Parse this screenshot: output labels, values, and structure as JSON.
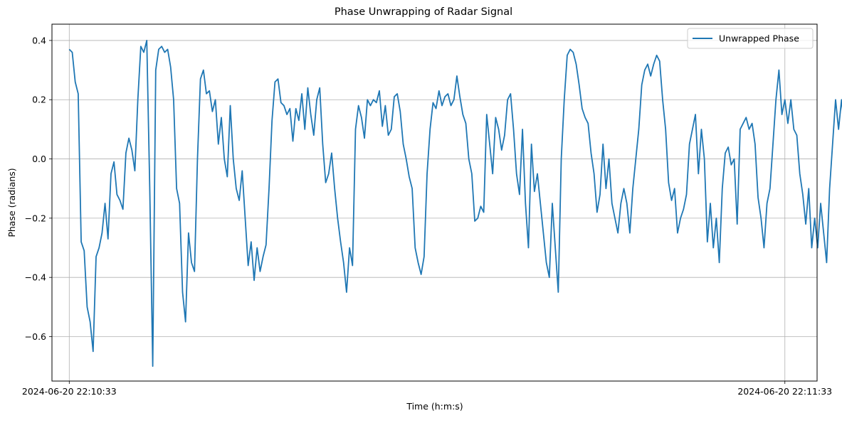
{
  "chart_data": {
    "type": "line",
    "title": "Phase Unwrapping of Radar Signal",
    "xlabel": "Time (h:m:s)",
    "ylabel": "Phase (radians)",
    "x_ticks": [
      "2024-06-20 22:10:33",
      "2024-06-20 22:11:33"
    ],
    "xlim_seconds": [
      -1.45,
      62.7
    ],
    "ylim": [
      -0.75,
      0.455
    ],
    "y_ticks": [
      -0.6,
      -0.4,
      -0.2,
      0.0,
      0.2,
      0.4
    ],
    "y_tick_labels": [
      "−0.6",
      "−0.4",
      "−0.2",
      "0.0",
      "0.2",
      "0.4"
    ],
    "grid": true,
    "legend_position": "upper-right",
    "colors": {
      "series": "#1f77b4",
      "grid": "#b0b0b0",
      "axes": "#000000"
    },
    "series": [
      {
        "name": "Unwrapped Phase",
        "t_start": "2024-06-20 22:10:33",
        "dt_seconds": 0.25,
        "values": [
          0.37,
          0.36,
          0.26,
          0.22,
          -0.28,
          -0.31,
          -0.5,
          -0.55,
          -0.65,
          -0.33,
          -0.3,
          -0.25,
          -0.15,
          -0.27,
          -0.05,
          -0.01,
          -0.12,
          -0.14,
          -0.17,
          0.02,
          0.07,
          0.03,
          -0.04,
          0.2,
          0.38,
          0.36,
          0.4,
          -0.1,
          -0.7,
          0.3,
          0.37,
          0.38,
          0.36,
          0.37,
          0.31,
          0.2,
          -0.1,
          -0.15,
          -0.45,
          -0.55,
          -0.25,
          -0.35,
          -0.38,
          0.0,
          0.27,
          0.3,
          0.22,
          0.23,
          0.16,
          0.2,
          0.05,
          0.14,
          0.0,
          -0.06,
          0.18,
          0.0,
          -0.1,
          -0.14,
          -0.04,
          -0.2,
          -0.36,
          -0.28,
          -0.41,
          -0.3,
          -0.38,
          -0.33,
          -0.29,
          -0.1,
          0.13,
          0.26,
          0.27,
          0.19,
          0.18,
          0.15,
          0.17,
          0.06,
          0.17,
          0.13,
          0.22,
          0.1,
          0.24,
          0.15,
          0.08,
          0.2,
          0.24,
          0.05,
          -0.08,
          -0.05,
          0.02,
          -0.1,
          -0.2,
          -0.28,
          -0.35,
          -0.45,
          -0.3,
          -0.36,
          0.1,
          0.18,
          0.14,
          0.07,
          0.2,
          0.18,
          0.2,
          0.19,
          0.23,
          0.11,
          0.18,
          0.08,
          0.1,
          0.21,
          0.22,
          0.16,
          0.05,
          0.0,
          -0.06,
          -0.1,
          -0.3,
          -0.35,
          -0.39,
          -0.33,
          -0.05,
          0.1,
          0.19,
          0.17,
          0.23,
          0.18,
          0.21,
          0.22,
          0.18,
          0.2,
          0.28,
          0.21,
          0.15,
          0.12,
          0.0,
          -0.05,
          -0.21,
          -0.2,
          -0.16,
          -0.18,
          0.15,
          0.05,
          -0.05,
          0.14,
          0.1,
          0.03,
          0.08,
          0.2,
          0.22,
          0.1,
          -0.05,
          -0.12,
          0.1,
          -0.15,
          -0.3,
          0.05,
          -0.11,
          -0.05,
          -0.15,
          -0.25,
          -0.35,
          -0.4,
          -0.15,
          -0.3,
          -0.45,
          0.0,
          0.2,
          0.35,
          0.37,
          0.36,
          0.32,
          0.25,
          0.17,
          0.14,
          0.12,
          0.02,
          -0.05,
          -0.18,
          -0.12,
          0.05,
          -0.1,
          0.0,
          -0.15,
          -0.2,
          -0.25,
          -0.15,
          -0.1,
          -0.15,
          -0.25,
          -0.1,
          0.0,
          0.1,
          0.25,
          0.3,
          0.32,
          0.28,
          0.32,
          0.35,
          0.33,
          0.2,
          0.1,
          -0.08,
          -0.14,
          -0.1,
          -0.25,
          -0.2,
          -0.17,
          -0.12,
          0.05,
          0.1,
          0.15,
          -0.05,
          0.1,
          0.0,
          -0.28,
          -0.15,
          -0.3,
          -0.2,
          -0.35,
          -0.1,
          0.02,
          0.04,
          -0.02,
          0.0,
          -0.22,
          0.1,
          0.12,
          0.14,
          0.1,
          0.12,
          0.05,
          -0.13,
          -0.2,
          -0.3,
          -0.15,
          -0.1,
          0.05,
          0.2,
          0.3,
          0.15,
          0.2,
          0.12,
          0.2,
          0.1,
          0.08,
          -0.05,
          -0.12,
          -0.22,
          -0.1,
          -0.3,
          -0.2,
          -0.3,
          -0.15,
          -0.25,
          -0.35,
          -0.1,
          0.05,
          0.2,
          0.1,
          0.2,
          0.1,
          0.08,
          0.12,
          0.14,
          0.12,
          0.2,
          0.32,
          0.25,
          0.2,
          -0.05,
          -0.1,
          -0.2,
          -0.35,
          -0.4,
          -0.2,
          -0.15,
          -0.1,
          0.0,
          0.15,
          0.25,
          0.3,
          0.28,
          0.3,
          0.2,
          0.1,
          0.0,
          -0.1,
          -0.25,
          -0.2,
          -0.15,
          -0.3,
          -0.2,
          -0.1,
          -0.15,
          -0.1,
          -0.05,
          0.0,
          0.15,
          0.2,
          0.25,
          0.28,
          0.27,
          0.25,
          0.2,
          0.15,
          0.05,
          -0.1,
          -0.2,
          -0.3,
          -0.15,
          -0.1,
          0.05,
          -0.05,
          0.0,
          0.1,
          0.25,
          0.35,
          0.3,
          0.1,
          0.2,
          0.18,
          0.05,
          -0.12,
          -0.25,
          -0.32,
          -0.2,
          -0.15,
          -0.05,
          -0.02,
          0.1,
          0.2,
          0.3,
          0.28,
          0.35,
          0.25,
          0.2,
          0.1,
          -0.1,
          -0.2,
          -0.15,
          -0.25,
          -0.1,
          -0.05,
          0.05,
          -0.05,
          -0.15,
          -0.2,
          -0.1,
          0.0,
          0.1,
          0.25,
          0.3,
          0.35,
          0.27,
          0.15,
          0.1,
          0.0,
          -0.1,
          -0.2,
          -0.25,
          -0.1,
          -0.05,
          0.05,
          0.1,
          0.2,
          0.18,
          0.2,
          0.25,
          0.22,
          0.15,
          0.05,
          0.0,
          -0.1,
          -0.12,
          -0.3,
          -0.2,
          -0.15,
          -0.2,
          -0.05,
          -0.1,
          0.05,
          0.1,
          0.2,
          0.22,
          0.25,
          0.28,
          0.2,
          0.1,
          0.0,
          -0.08,
          -0.12,
          -0.2,
          -0.28,
          -0.25,
          -0.34,
          -0.15,
          -0.2,
          -0.1,
          -0.15,
          0.08,
          -0.2,
          -0.22,
          -0.25,
          -0.2,
          -0.15,
          -0.1,
          -0.12,
          -0.1
        ]
      }
    ]
  }
}
